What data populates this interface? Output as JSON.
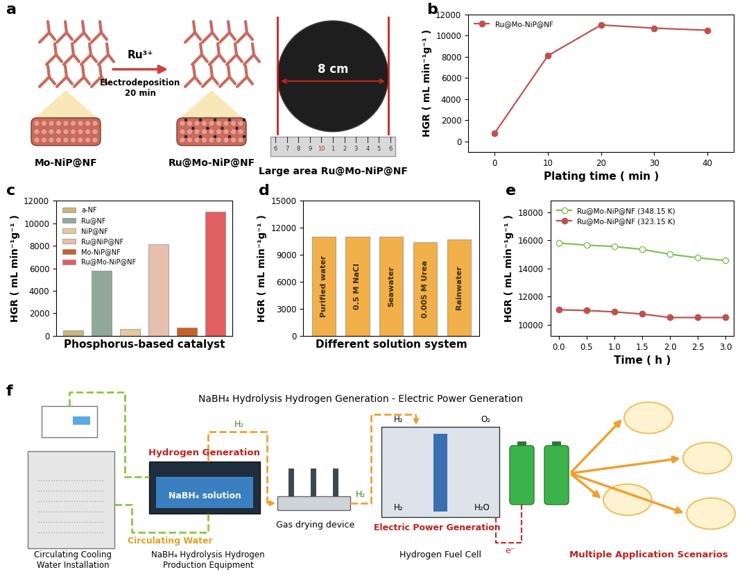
{
  "panel_labels": [
    "a",
    "b",
    "c",
    "d",
    "e",
    "f"
  ],
  "schematic_a": {
    "before": "Mo-NiP@NF",
    "after": "Ru@Mo-NiP@NF",
    "reagent": "Ru³⁺",
    "process": "Electrodeposition\n20 min",
    "photo_title": "Large area Ru@Mo-NiP@NF",
    "diameter": "8 cm",
    "ruler": [
      "6",
      "7",
      "8",
      "9",
      "10",
      "1",
      "2",
      "3",
      "4",
      "5",
      "6"
    ]
  },
  "chart_data": [
    {
      "type": "line",
      "x": [
        0,
        10,
        20,
        30,
        40
      ],
      "series": [
        {
          "name": "Ru@Mo-NiP@NF",
          "color": "#c0504d",
          "marker": "circle",
          "values": [
            800,
            8100,
            11000,
            10700,
            10500
          ]
        }
      ],
      "xlabel": "Plating time ( min )",
      "ylabel": "HGR ( mL min⁻¹g⁻¹ )",
      "xlim": [
        -5,
        45
      ],
      "xticks": [
        0,
        10,
        20,
        30,
        40
      ],
      "ylim": [
        -1000,
        12000
      ],
      "yticks": [
        0,
        2000,
        4000,
        6000,
        8000,
        10000,
        12000
      ],
      "legend": "upper left"
    },
    {
      "type": "bar",
      "categories": [
        "a-NF",
        "Ru@NF",
        "NiP@NF",
        "Ru@NiP@NF",
        "Mo-NiP@NF",
        "Ru@Mo-NiP@NF"
      ],
      "values": [
        500,
        5800,
        600,
        8150,
        750,
        11050
      ],
      "colors": [
        "#c9b77a",
        "#8fa89a",
        "#e6c89c",
        "#e8bfae",
        "#c8602a",
        "#e06060"
      ],
      "xlabel": "Phosphorus-based catalyst",
      "ylabel": "HGR ( mL min⁻¹g⁻¹ )",
      "ylim": [
        0,
        12000
      ],
      "yticks": [
        0,
        2000,
        4000,
        6000,
        8000,
        10000,
        12000
      ],
      "legend": "upper left",
      "tick_labels": "y"
    },
    {
      "type": "bar",
      "categories": [
        "Purified water",
        "0.5 M NaCl",
        "Seawater",
        "0.005 M Urea",
        "Rainwater"
      ],
      "values": [
        11050,
        11000,
        11000,
        10400,
        10700
      ],
      "color": "#f2b04a",
      "xlabel": "Different solution system",
      "ylabel": "HGR ( mL min⁻¹g⁻¹ )",
      "ylim": [
        0,
        15000
      ],
      "yticks": [
        0,
        3000,
        6000,
        9000,
        12000,
        15000
      ],
      "tick_labels": "y"
    },
    {
      "type": "line",
      "x": [
        0,
        0.5,
        1,
        1.5,
        2,
        2.5,
        3
      ],
      "series": [
        {
          "name": "Ru@Mo-NiP@NF (348.15 K)",
          "color": "#7fbf5a",
          "marker": "open_circle",
          "values": [
            15800,
            15650,
            15550,
            15350,
            15000,
            14750,
            14550
          ]
        },
        {
          "name": "Ru@Mo-NiP@NF (323.15 K)",
          "color": "#c0504d",
          "marker": "circle",
          "values": [
            11050,
            11000,
            10900,
            10750,
            10500,
            10500,
            10500
          ]
        }
      ],
      "xlabel": "Time ( h )",
      "ylabel": "HGR ( mL min⁻¹g⁻¹ )",
      "xlim": [
        -0.15,
        3.15
      ],
      "xticks": [
        {
          "value": 0,
          "label": "0.0"
        },
        0.5,
        {
          "value": 1,
          "label": "1.0"
        },
        1.5,
        {
          "value": 2,
          "label": "2.0"
        },
        2.5,
        {
          "value": 3,
          "label": "3.0"
        }
      ],
      "ylim": [
        9200,
        18800
      ],
      "yticks": [
        10000,
        12000,
        14000,
        16000,
        18000
      ],
      "legend": "upper left"
    }
  ],
  "diagram_f": {
    "title": "NaBH₄ Hydrolysis Hydrogen Generation - Electric Power Generation",
    "cooling": "Circulating Cooling\nWater Installation",
    "reactor_title": "Hydrogen Generation",
    "reactor_solution": "NaBH₄ solution",
    "circulation": "Circulating Water",
    "reactor": "NaBH₄ Hydrolysis Hydrogen\nProduction Equipment",
    "dryer": "Gas drying device",
    "fuel_cell": "Hydrogen Fuel Cell",
    "power": "Electric Power Generation",
    "applications": "Multiple Application Scenarios",
    "gas_flow": [
      "H₂",
      "H₂"
    ],
    "cell_inputs": [
      "H₂",
      "O₂"
    ],
    "cell_outputs": [
      "H₂",
      "H₂O"
    ],
    "electron": "e⁻"
  }
}
